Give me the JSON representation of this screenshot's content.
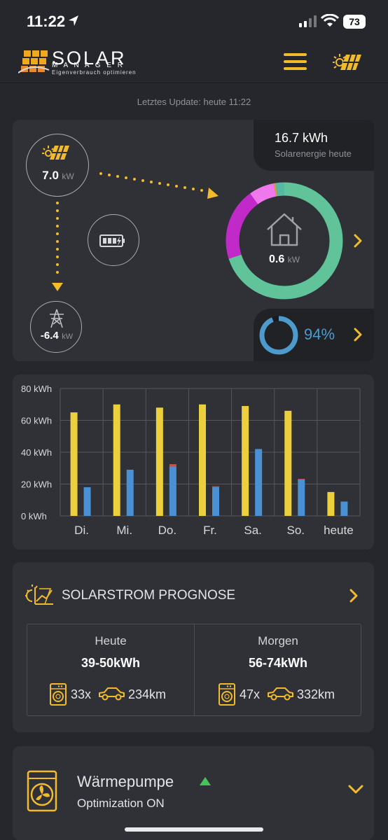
{
  "status_bar": {
    "time": "11:22",
    "battery": "73"
  },
  "header": {
    "brand_name": "SOLAR",
    "brand_sub": "M A N A G E R",
    "brand_tagline": "Eigenverbrauch optimieren"
  },
  "last_update": "Letztes Update: heute 11:22",
  "flow": {
    "solar_today_value": "16.7 kWh",
    "solar_today_label": "Solarenergie heute",
    "production_value": "7.0",
    "production_unit": "kW",
    "grid_value": "-6.4",
    "grid_unit": "kW",
    "home_value": "0.6",
    "home_unit": "kW",
    "autarky_value": "94%",
    "donut_segments": [
      {
        "name": "green",
        "fraction": 0.7,
        "color": "#60c39a"
      },
      {
        "name": "magenta",
        "fraction": 0.2,
        "color": "#c229c9"
      },
      {
        "name": "pink",
        "fraction": 0.07,
        "color": "#ee78ec"
      },
      {
        "name": "orange",
        "fraction": 0.005,
        "color": "#e39a3a"
      },
      {
        "name": "teal",
        "fraction": 0.025,
        "color": "#57b8a4"
      }
    ],
    "autarky_fraction": 0.94,
    "colors": {
      "accent": "#f2bb2c",
      "autarky": "#4d9bcd"
    }
  },
  "chart_data": {
    "type": "bar",
    "categories": [
      "Di.",
      "Mi.",
      "Do.",
      "Fr.",
      "Sa.",
      "So.",
      "heute"
    ],
    "y_ticks": [
      "80 kWh",
      "60 kWh",
      "40 kWh",
      "20 kWh",
      "0 kWh"
    ],
    "ylim": [
      0,
      80
    ],
    "series": [
      {
        "values": [
          65,
          70,
          68,
          70,
          69,
          66,
          15
        ],
        "color": "#eccf3c"
      },
      {
        "values": [
          18,
          29,
          31,
          18,
          42,
          23,
          9
        ],
        "color": "#4a90d4"
      },
      {
        "values": [
          0,
          0,
          1.5,
          0.6,
          0,
          0.3,
          0
        ],
        "color": "#d9493c"
      }
    ]
  },
  "forecast": {
    "title": "SOLARSTROM PROGNOSE",
    "today": {
      "label": "Heute",
      "value": "39-50kWh",
      "washes": "33x",
      "distance": "234km"
    },
    "tomorrow": {
      "label": "Morgen",
      "value": "56-74kWh",
      "washes": "47x",
      "distance": "332km"
    }
  },
  "heat_pump": {
    "title": "Wärmepumpe",
    "status": "Optimization ON"
  }
}
